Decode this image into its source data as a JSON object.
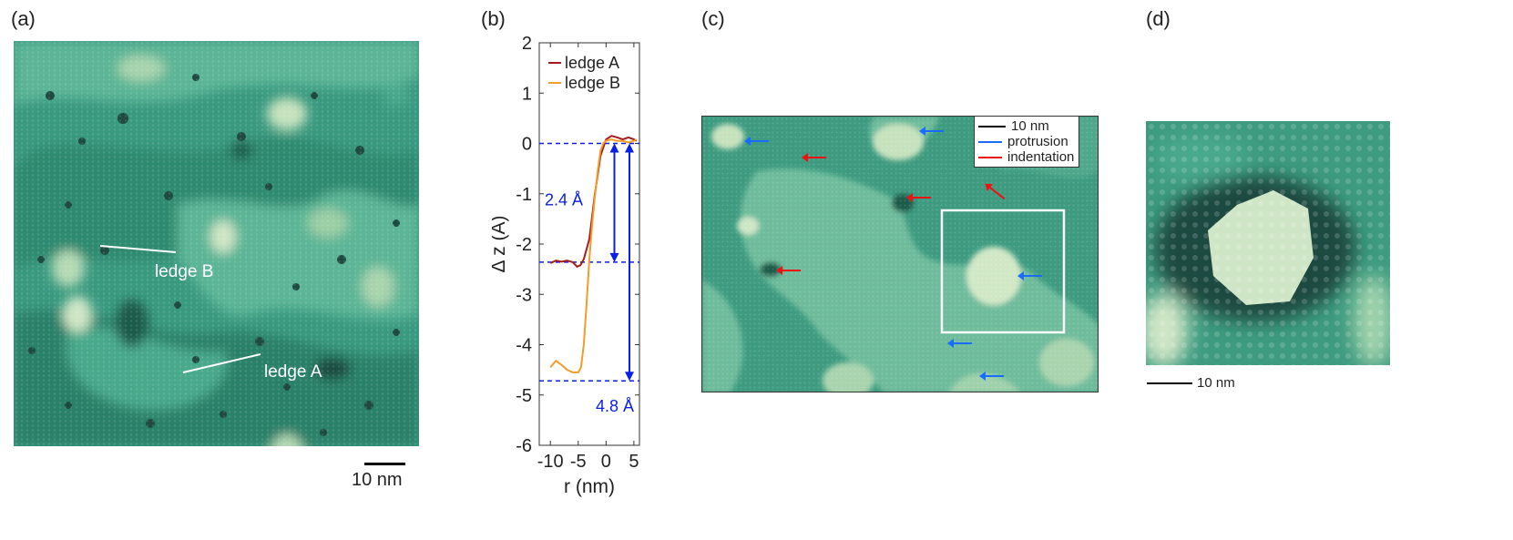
{
  "panels": {
    "a": {
      "label": "(a)",
      "ledge_b": "ledge B",
      "ledge_a": "ledge A",
      "scale": "10 nm"
    },
    "b": {
      "label": "(b)"
    },
    "c": {
      "label": "(c)",
      "legend": {
        "scale": "10 nm",
        "protrusion": "protrusion",
        "indentation": "indentation"
      }
    },
    "d": {
      "label": "(d)",
      "scale": "10 nm"
    }
  },
  "colors": {
    "stm_dark": "#1f5a4a",
    "stm_mid": "#3a9a80",
    "stm_light": "#cfe6c6",
    "ledge_a_line": "#a51c1c",
    "ledge_b_line": "#f39c28",
    "annotation": "#0a1ee6",
    "protrusion_arrow": "#1a6cff",
    "indentation_arrow": "#e11111"
  },
  "chart_data": {
    "type": "line",
    "xlabel": "r (nm)",
    "ylabel": "Δ z (Å)",
    "xlim": [
      -12,
      6
    ],
    "ylim": [
      -6,
      2
    ],
    "xticks": [
      -10,
      -5,
      0,
      5
    ],
    "yticks": [
      2,
      1,
      0,
      -1,
      -2,
      -3,
      -4,
      -5,
      -6
    ],
    "legend_position": "top-right",
    "series": [
      {
        "name": "ledge A",
        "color": "#a51c1c",
        "points": [
          [
            -10,
            -2.38
          ],
          [
            -9,
            -2.33
          ],
          [
            -8,
            -2.35
          ],
          [
            -7,
            -2.33
          ],
          [
            -6,
            -2.36
          ],
          [
            -5.2,
            -2.45
          ],
          [
            -4.6,
            -2.42
          ],
          [
            -4,
            -2.3
          ],
          [
            -3,
            -1.9
          ],
          [
            -2,
            -1.0
          ],
          [
            -1,
            -0.25
          ],
          [
            0,
            0.08
          ],
          [
            1,
            0.15
          ],
          [
            2,
            0.12
          ],
          [
            3,
            0.08
          ],
          [
            4,
            0.12
          ],
          [
            5,
            0.08
          ],
          [
            5.5,
            0.05
          ]
        ]
      },
      {
        "name": "ledge B",
        "color": "#f39c28",
        "points": [
          [
            -10,
            -4.45
          ],
          [
            -9,
            -4.32
          ],
          [
            -8,
            -4.4
          ],
          [
            -7,
            -4.5
          ],
          [
            -6,
            -4.55
          ],
          [
            -5,
            -4.55
          ],
          [
            -4.5,
            -4.45
          ],
          [
            -4,
            -4.0
          ],
          [
            -3.5,
            -3.2
          ],
          [
            -3,
            -2.3
          ],
          [
            -2.5,
            -1.6
          ],
          [
            -2,
            -1.05
          ],
          [
            -1.5,
            -0.55
          ],
          [
            -1,
            -0.15
          ],
          [
            -0.5,
            0.0
          ],
          [
            0,
            0.05
          ],
          [
            1,
            0.08
          ],
          [
            2,
            0.05
          ],
          [
            3,
            0.05
          ],
          [
            4,
            0.02
          ],
          [
            5,
            0.05
          ],
          [
            5.5,
            0.08
          ]
        ]
      }
    ],
    "reference_lines": [
      0,
      -2.36,
      -4.72
    ],
    "annotations": [
      {
        "text": "2.4 Å",
        "from": 0,
        "to": -2.36,
        "x": 1.5
      },
      {
        "text": "4.8 Å",
        "from": 0,
        "to": -4.72,
        "x": 4.2
      }
    ]
  }
}
